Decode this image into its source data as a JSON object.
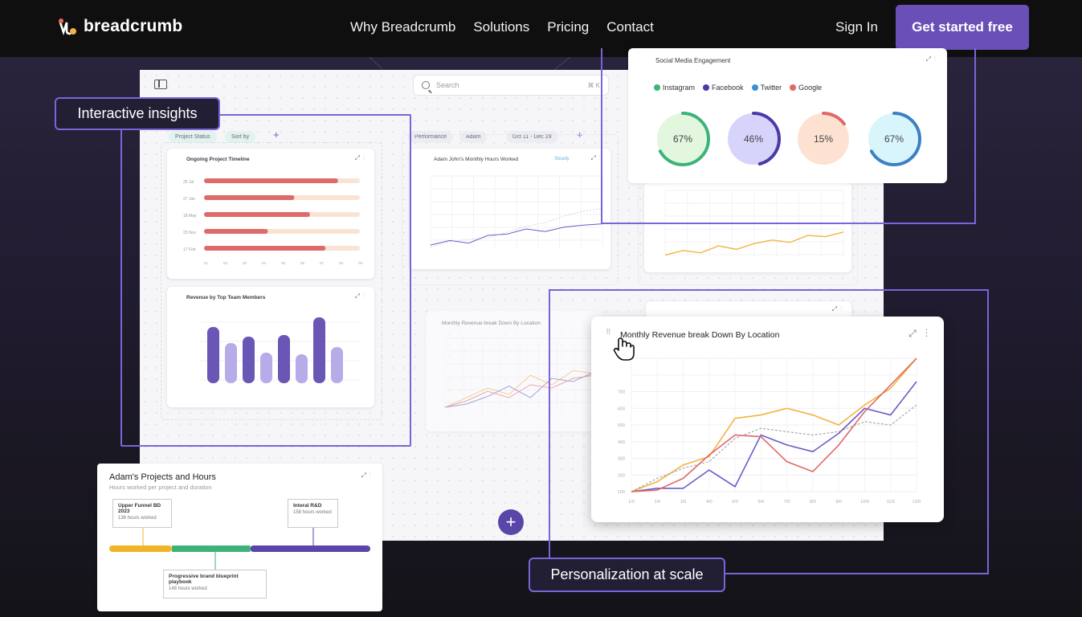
{
  "nav": {
    "brand": "breadcrumb",
    "links": [
      "Why Breadcrumb",
      "Solutions",
      "Pricing",
      "Contact"
    ],
    "sign_in": "Sign In",
    "cta": "Get started free"
  },
  "dashboard": {
    "search_placeholder": "Search",
    "search_shortcut": "⌘ K",
    "filters_left": [
      "Project Status",
      "Sort by"
    ],
    "filters_right": [
      "Performance",
      "Adam",
      "Oct 11 - Dec 29"
    ]
  },
  "callouts": {
    "insights": "Interactive insights",
    "personalization": "Personalization at scale"
  },
  "social": {
    "title": "Social Media Engagement",
    "legend": [
      {
        "name": "Instagram",
        "color": "#3db37a"
      },
      {
        "name": "Facebook",
        "color": "#4a3aa8"
      },
      {
        "name": "Twitter",
        "color": "#3c8ed6"
      },
      {
        "name": "Google",
        "color": "#e06868"
      }
    ],
    "donuts": [
      {
        "label": "67%",
        "value": 0.67,
        "fill": "#e2f7de",
        "stroke": "#3db37a"
      },
      {
        "label": "46%",
        "value": 0.46,
        "fill": "#d7d4fb",
        "stroke": "#4a3aa8"
      },
      {
        "label": "15%",
        "value": 0.15,
        "fill": "#fde2d2",
        "stroke": "#e06868"
      },
      {
        "label": "67%",
        "value": 0.67,
        "fill": "#d8f5fb",
        "stroke": "#3c7fc4"
      }
    ]
  },
  "timeline_card": {
    "title": "Ongoing Project Timeline",
    "rows": [
      {
        "label": "25 Jul",
        "value": 0.86
      },
      {
        "label": "27 Jan",
        "value": 0.58
      },
      {
        "label": "18 May",
        "value": 0.68
      },
      {
        "label": "23 Nov",
        "value": 0.41
      },
      {
        "label": "17 Feb",
        "value": 0.78
      }
    ]
  },
  "bar_card": {
    "title": "Revenue by Top Team Members",
    "values": [
      70,
      50,
      58,
      38,
      60,
      36,
      82,
      45
    ],
    "colors": [
      "#6a56b5",
      "#b8ace8",
      "#6a56b5",
      "#b8ace8",
      "#6a56b5",
      "#b8ace8",
      "#6a56b5",
      "#b8ace8"
    ]
  },
  "hours_card": {
    "title": "Adam John's Monthly Hours Worked",
    "status": "Steady"
  },
  "faded_card": {
    "title": "Monthly Revenue break Down By Location"
  },
  "revenue_card": {
    "title": "Monthly Revenue break Down By Location"
  },
  "projects": {
    "title": "Adam's Projects and Hours",
    "subtitle": "Hours worked per project and duration",
    "items": [
      {
        "name": "Upper Funnel BD 2023",
        "hours": "136 hours worked"
      },
      {
        "name": "Interal R&D",
        "hours": "158 hours worked"
      },
      {
        "name": "Progressive brand blueprint playbook",
        "hours": "148 hours worked"
      }
    ],
    "segments": [
      {
        "color": "#f0b429",
        "share": 0.24
      },
      {
        "color": "#3db37a",
        "share": 0.3
      },
      {
        "color": "#5a45a8",
        "share": 0.46
      }
    ]
  },
  "chart_data": [
    {
      "type": "line",
      "title": "Monthly Revenue break Down By Location",
      "categories": [
        "1/0",
        "1/0",
        "1/0",
        "4/0",
        "5/0",
        "6/0",
        "7/0",
        "8/0",
        "9/0",
        "10/0",
        "11/0",
        "12/0"
      ],
      "series": [
        {
          "color": "#f4b33f",
          "values": [
            100,
            160,
            260,
            310,
            540,
            560,
            600,
            560,
            500,
            620,
            720,
            900
          ]
        },
        {
          "color": "#6a5cc9",
          "values": [
            100,
            120,
            120,
            230,
            130,
            440,
            380,
            340,
            450,
            600,
            560,
            760
          ]
        },
        {
          "color": "#e06868",
          "values": [
            100,
            110,
            180,
            320,
            440,
            430,
            280,
            220,
            380,
            580,
            740,
            900
          ]
        },
        {
          "color": "#9a9aa6",
          "dashed": true,
          "values": [
            100,
            180,
            240,
            280,
            420,
            480,
            460,
            440,
            460,
            520,
            500,
            620
          ]
        }
      ],
      "ylim": [
        100,
        900
      ],
      "yticks": [
        100,
        200,
        300,
        400,
        500,
        600,
        700
      ]
    }
  ]
}
